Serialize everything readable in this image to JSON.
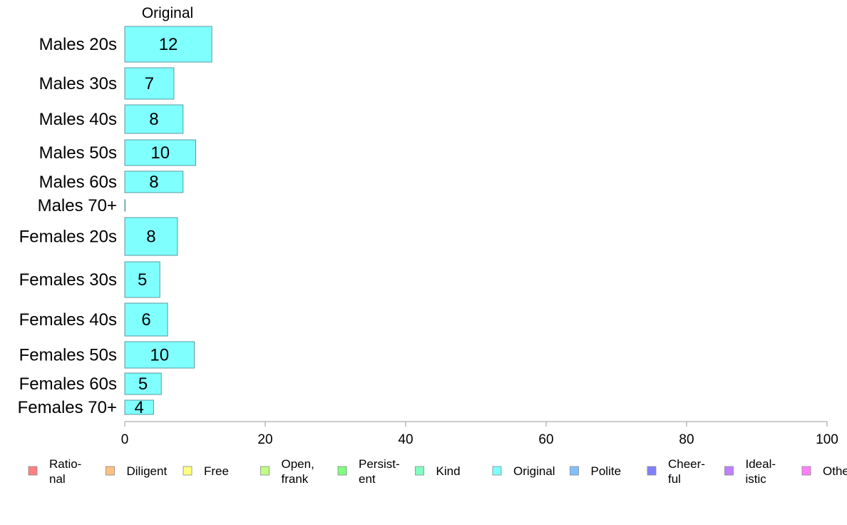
{
  "chart_data": {
    "type": "bar",
    "orientation": "horizontal",
    "column_title": "Original",
    "categories": [
      "Males 20s",
      "Males 30s",
      "Males 40s",
      "Males 50s",
      "Males 60s",
      "Males 70+",
      "Females 20s",
      "Females 30s",
      "Females 40s",
      "Females 50s",
      "Females 60s",
      "Females 70+"
    ],
    "values": [
      12.4,
      7,
      8.3,
      10.1,
      8.3,
      0,
      7.5,
      5,
      6.1,
      9.9,
      5.2,
      4.1
    ],
    "value_labels": [
      "12",
      "7",
      "8",
      "10",
      "8",
      "",
      "8",
      "5",
      "6",
      "10",
      "5",
      "4"
    ],
    "bar_color": "#80ffff",
    "bar_stroke": "#5a9aa0",
    "xlim": [
      0,
      100
    ],
    "x_ticks": [
      0,
      20,
      40,
      60,
      80,
      100
    ],
    "legend": [
      {
        "label": "Ratio-\nnal",
        "color": "#ff8080"
      },
      {
        "label": "Diligent",
        "color": "#ffc080"
      },
      {
        "label": "Free",
        "color": "#ffff80"
      },
      {
        "label": "Open,\nfrank",
        "color": "#c0ff80"
      },
      {
        "label": "Persist-\nent",
        "color": "#80ff80"
      },
      {
        "label": "Kind",
        "color": "#80ffc0"
      },
      {
        "label": "Original",
        "color": "#80ffff"
      },
      {
        "label": "Polite",
        "color": "#80c0ff"
      },
      {
        "label": "Cheer-\nful",
        "color": "#8080ff"
      },
      {
        "label": "Ideal-\nistic",
        "color": "#c080ff"
      },
      {
        "label": "Others",
        "color": "#ff80ff"
      }
    ],
    "legend_position": "bottom"
  }
}
